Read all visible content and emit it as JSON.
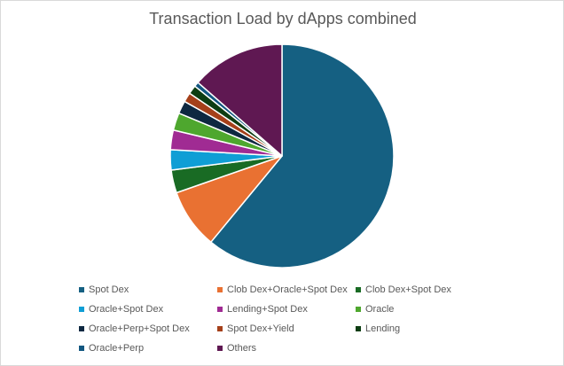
{
  "chart_data": {
    "type": "pie",
    "title": "Transaction Load by dApps combined",
    "legend_position": "bottom",
    "slices": [
      {
        "label": "Spot Dex",
        "value": 62.5,
        "color": "#156082"
      },
      {
        "label": "Clob Dex+Oracle+Spot Dex",
        "value": 8.9,
        "color": "#e97132"
      },
      {
        "label": "Clob Dex+Spot Dex",
        "value": 3.4,
        "color": "#196b24"
      },
      {
        "label": "Oracle+Spot Dex",
        "value": 3.0,
        "color": "#0f9ed5"
      },
      {
        "label": "Lending+Spot Dex",
        "value": 2.9,
        "color": "#a02b93"
      },
      {
        "label": "Oracle",
        "value": 2.6,
        "color": "#4ea72e"
      },
      {
        "label": "Oracle+Perp+Spot Dex",
        "value": 1.9,
        "color": "#0e2841"
      },
      {
        "label": "Spot Dex+Yield",
        "value": 1.4,
        "color": "#a5401a"
      },
      {
        "label": "Lending",
        "value": 1.3,
        "color": "#0d3d12"
      },
      {
        "label": "Oracle+Perp",
        "value": 0.7,
        "color": "#125780"
      },
      {
        "label": "Others",
        "value": 13.9,
        "color": "#5f1852"
      }
    ]
  }
}
